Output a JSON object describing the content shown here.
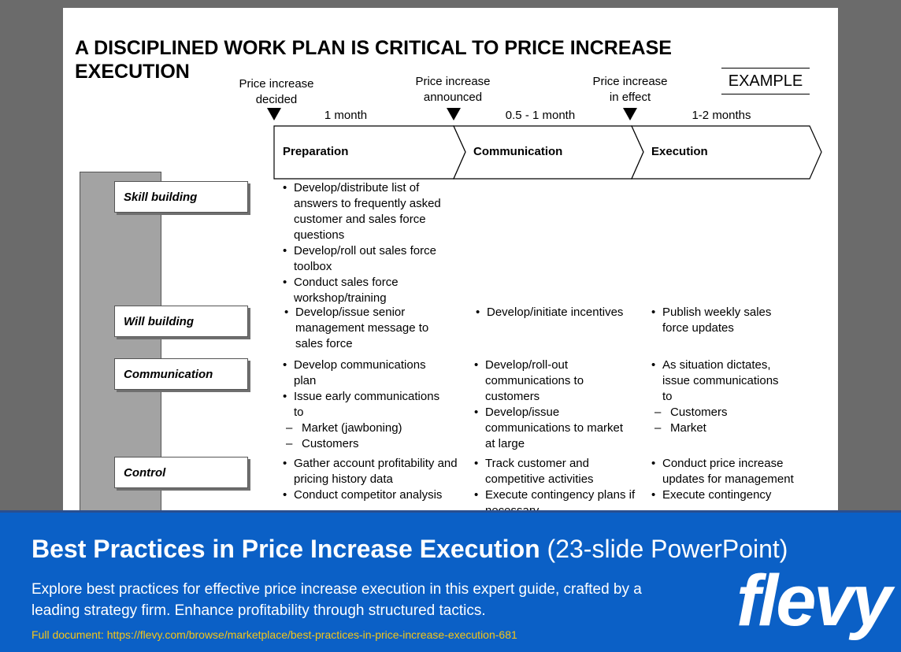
{
  "slide": {
    "title": "A DISCIPLINED WORK PLAN IS CRITICAL TO PRICE INCREASE EXECUTION",
    "tag": "EXAMPLE",
    "milestones": [
      {
        "line1": "Price increase",
        "line2": "decided"
      },
      {
        "line1": "Price increase",
        "line2": "announced"
      },
      {
        "line1": "Price increase",
        "line2": "in effect"
      }
    ],
    "durations": [
      "1 month",
      "0.5 - 1 month",
      "1-2 months"
    ],
    "phases": [
      "Preparation",
      "Communication",
      "Execution"
    ],
    "rows": [
      {
        "label": "Skill building",
        "cells": [
          [
            "Develop/distribute list of answers to frequently asked customer and sales force questions",
            "Develop/roll out sales force toolbox",
            "Conduct sales force workshop/training"
          ],
          [],
          []
        ]
      },
      {
        "label": "Will building",
        "cells": [
          [
            "Develop/issue senior management message  to sales force"
          ],
          [
            "Develop/initiate incentives"
          ],
          [
            "Publish weekly sales force updates"
          ]
        ]
      },
      {
        "label": "Communication",
        "cells": [
          [
            "Develop communications plan",
            "Issue early communications to"
          ],
          [
            "Develop/roll-out communications to customers",
            "Develop/issue communications to market at large"
          ],
          [
            "As situation dictates, issue communications to"
          ]
        ],
        "subs": [
          [
            "Market (jawboning)",
            "Customers"
          ],
          [],
          [
            "Customers",
            "Market"
          ]
        ]
      },
      {
        "label": "Control",
        "cells": [
          [
            "Gather account profitability and pricing history data",
            "Conduct competitor analysis"
          ],
          [
            "Track customer and competitive activities",
            "Execute contingency plans if necessary"
          ],
          [
            "Conduct  price increase updates for management",
            "Execute contingency"
          ]
        ]
      }
    ]
  },
  "banner": {
    "title_bold": "Best Practices in Price Increase Execution",
    "title_rest": " (23-slide PowerPoint)",
    "description": "Explore best practices for effective price increase execution in this expert guide, crafted by a leading strategy firm. Enhance profitability through structured tactics.",
    "link": "Full document: https://flevy.com/browse/marketplace/best-practices-in-price-increase-execution-681",
    "logo": "flevy"
  }
}
